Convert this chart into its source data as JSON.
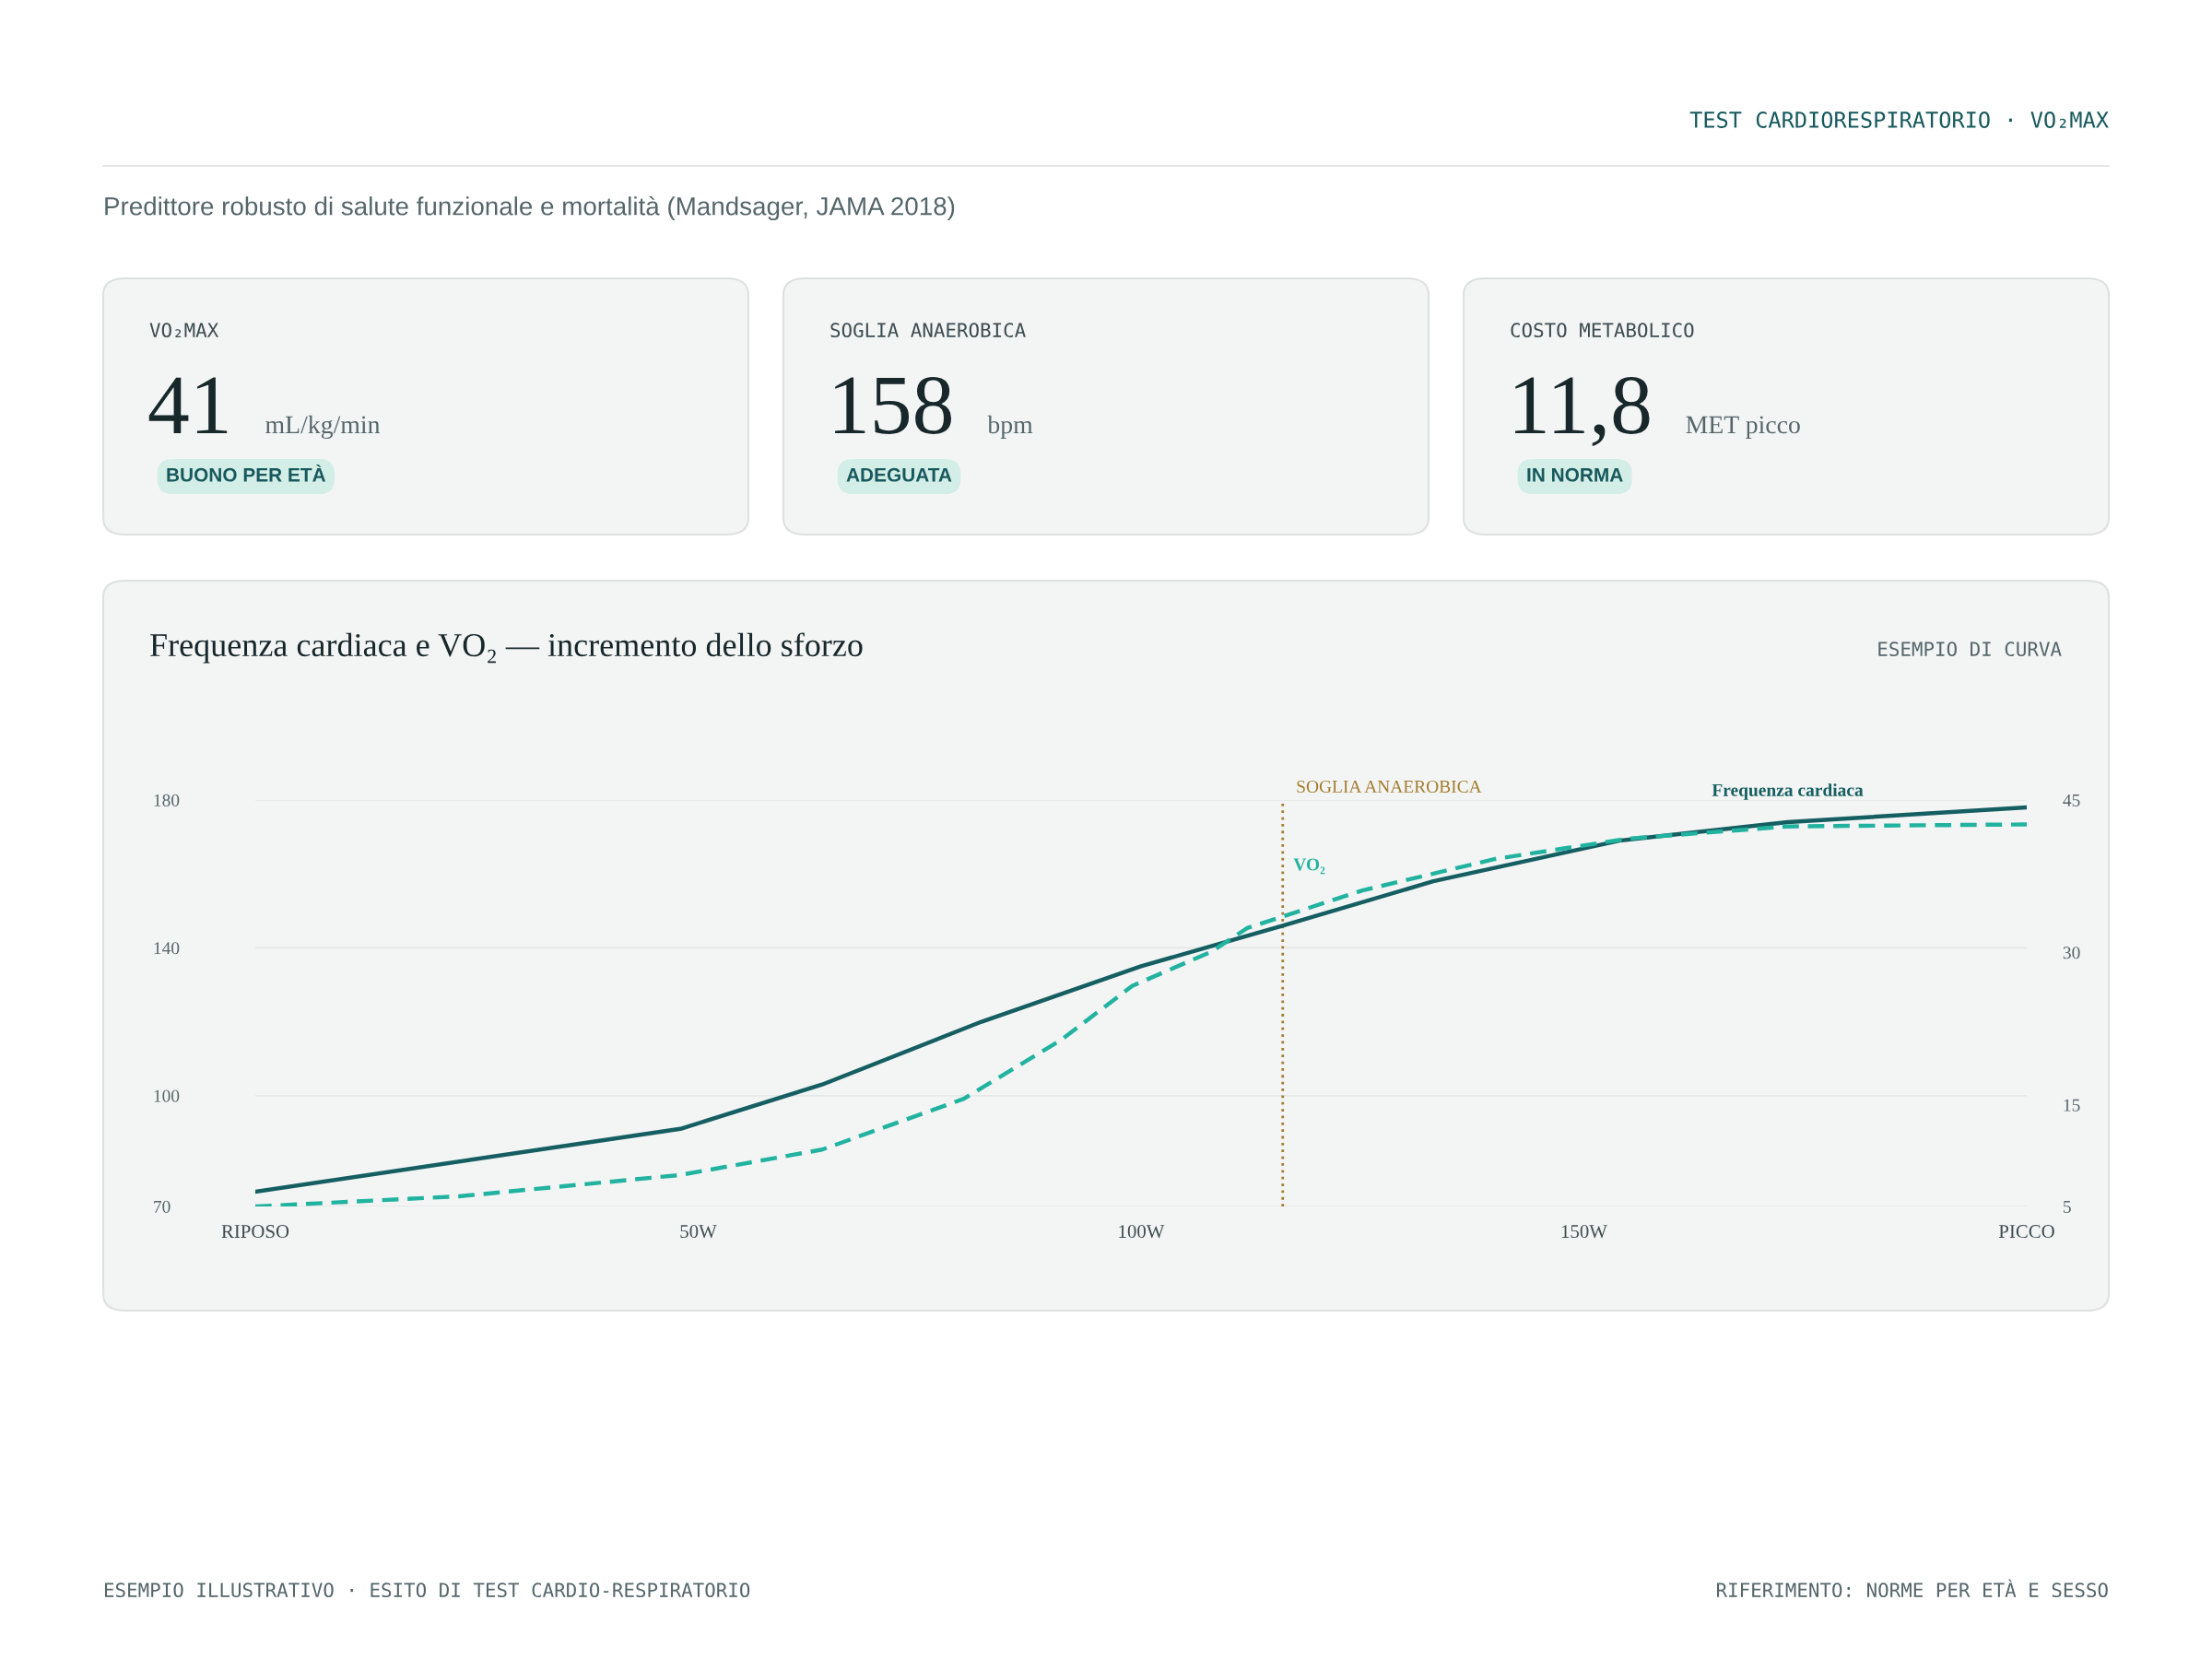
{
  "chart_data": [
    {
      "type": "other",
      "title": "TEST CARDIORESPIRATORIO · VO₂MAX",
      "subtitle": "Predittore robusto di salute funzionale e mortalità (Mandsager, JAMA 2018)"
    },
    {
      "type": "other",
      "title": "VO₂MAX",
      "annotations": [
        "41",
        "mL/kg/min",
        "BUONO PER ETÀ"
      ]
    },
    {
      "type": "other",
      "title": "SOGLIA ANAEROBICA",
      "annotations": [
        "158",
        "bpm",
        "ADEGUATA"
      ]
    },
    {
      "type": "other",
      "title": "COSTO METABOLICO",
      "annotations": [
        "11,8",
        "MET picco",
        "IN NORMA"
      ]
    },
    {
      "type": "line",
      "title": "Frequenza cardiaca e VO₂ — incremento dello sforzo",
      "subtitle": "ESEMPIO DI CURVA",
      "xlim": [
        0,
        200
      ],
      "xticks": [
        {
          "value": 0,
          "label": "RIPOSO"
        },
        {
          "value": 50,
          "label": "50W"
        },
        {
          "value": 100,
          "label": "100W"
        },
        {
          "value": 150,
          "label": "150W"
        },
        {
          "value": 200,
          "label": "PICCO"
        }
      ],
      "ylim": [
        70,
        180
      ],
      "yticks": [
        70,
        100,
        140,
        180
      ],
      "y2lim": [
        5,
        45
      ],
      "y2ticks": [
        5,
        15,
        30,
        45
      ],
      "grid": "y",
      "legend": false,
      "marker": "none",
      "series": [
        {
          "name": "Frequenza cardiaca",
          "color": "#155e62",
          "line_style": "solid",
          "x": [
            0,
            48,
            64,
            82,
            100,
            116,
            133,
            154,
            173,
            200
          ],
          "values": [
            74,
            91,
            103,
            120,
            135,
            146,
            158,
            169,
            174,
            178
          ]
        },
        {
          "name": "VO₂",
          "color": "#22b3a0",
          "line_style": "dashed",
          "axis": "y2",
          "x": [
            0,
            23,
            48,
            64,
            80,
            91,
            99,
            108,
            112,
            125,
            140,
            155,
            173,
            200
          ],
          "values": [
            5,
            6,
            8.1,
            10.6,
            15.6,
            21.4,
            26.7,
            30.1,
            32.4,
            36.1,
            39.2,
            41.2,
            42.4,
            42.6
          ]
        }
      ],
      "ref_lines": [
        {
          "axis": "x",
          "value": 116,
          "label": "SOGLIA ANAEROBICA",
          "color": "#a47c2e",
          "line_style": "dotted"
        }
      ],
      "annotations": [
        "ESEMPIO ILLUSTRATIVO · ESITO DI TEST CARDIO-RESPIRATORIO",
        "RIFERIMENTO: NORME PER ETÀ E SESSO"
      ]
    }
  ]
}
